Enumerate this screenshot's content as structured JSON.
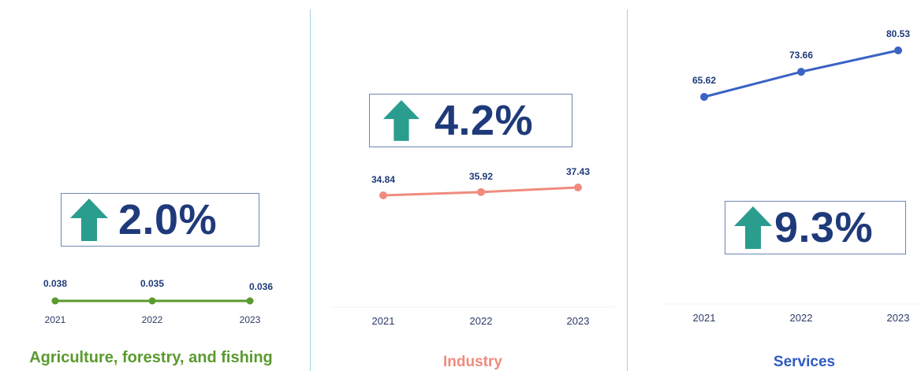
{
  "chart_data": [
    {
      "type": "line",
      "title": "Agriculture, forestry, and fishing",
      "categories": [
        "2021",
        "2022",
        "2023"
      ],
      "values": [
        0.038,
        0.035,
        0.036
      ],
      "value_labels": [
        "0.038",
        "0.035",
        "0.036"
      ],
      "growth_label": "2.0%",
      "growth_direction": "up",
      "color": "#5a9a2e",
      "title_color": "#5a9a2e"
    },
    {
      "type": "line",
      "title": "Industry",
      "categories": [
        "2021",
        "2022",
        "2023"
      ],
      "values": [
        34.84,
        35.92,
        37.43
      ],
      "value_labels": [
        "34.84",
        "35.92",
        "37.43"
      ],
      "growth_label": "4.2%",
      "growth_direction": "up",
      "color": "#f08b7e",
      "title_color": "#f08b7e"
    },
    {
      "type": "line",
      "title": "Services",
      "categories": [
        "2021",
        "2022",
        "2023"
      ],
      "values": [
        65.62,
        73.66,
        80.53
      ],
      "value_labels": [
        "65.62",
        "73.66",
        "80.53"
      ],
      "growth_label": "9.3%",
      "growth_direction": "up",
      "color": "#3a63c4",
      "title_color": "#2f5bbf"
    }
  ],
  "colors": {
    "arrow": "#2a9d8f",
    "growth_text": "#1f3a7a",
    "box_border": "#6d86b6",
    "divider": "#9fd3de",
    "value_label": "#1f3a7a",
    "tick_label": "#2b3a67"
  },
  "icons": {
    "growth_arrow": "up-arrow-icon"
  }
}
